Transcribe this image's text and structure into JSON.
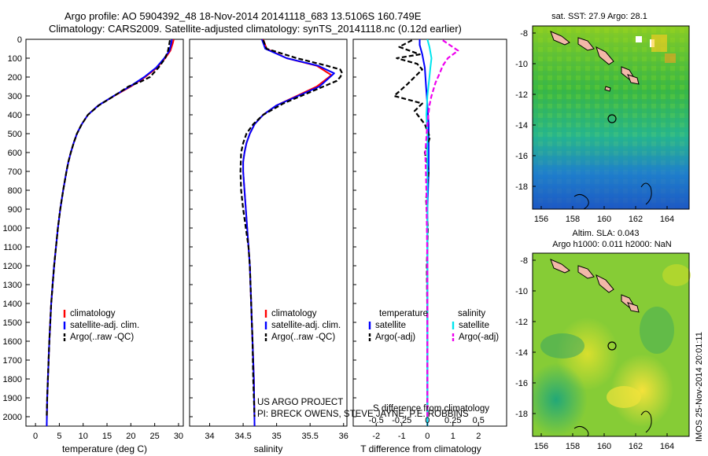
{
  "header": {
    "line1": "Argo profile: AO 5904392_48 18-Nov-2014 20141118_683 13.5106S 160.749E",
    "line2": "Climatology: CARS2009. Satellite-adjusted climatology: synTS_20141118.nc (0.12d earlier)"
  },
  "credits": {
    "project": "US ARGO PROJECT",
    "pis": "PI: BRECK OWENS, STEVE JAYNE, P.E. ROBBINS"
  },
  "side_stamp": "IMOS 25-Nov-2014 20:01:11",
  "maps": {
    "sst_title": "sat. SST: 27.9 Argo: 28.1",
    "sla_title1": "Altim. SLA: 0.043",
    "sla_title2": "Argo h1000: 0.011 h2000: NaN",
    "xticks": [
      "156",
      "158",
      "160",
      "162",
      "164"
    ],
    "yticks": [
      "-8",
      "-10",
      "-12",
      "-14",
      "-16",
      "-18"
    ],
    "argo_marker": {
      "lon": 160.749,
      "lat": -13.5106
    }
  },
  "colors": {
    "climatology": "#ff0000",
    "satellite_adj": "#0000ff",
    "argo": "#000000",
    "satellite_diff": "#00e5ee",
    "argo_sal_diff": "#ee00ee",
    "land": "#f2b8a8"
  },
  "chart_data": [
    {
      "type": "line",
      "xlabel": "temperature (deg C)",
      "ylabel": "",
      "xlim": [
        -2,
        31
      ],
      "ylim": [
        2050,
        0
      ],
      "xticks": [
        0,
        5,
        10,
        15,
        20,
        25,
        30
      ],
      "yticks": [
        0,
        100,
        200,
        300,
        400,
        500,
        600,
        700,
        800,
        900,
        1000,
        1100,
        1200,
        1300,
        1400,
        1500,
        1600,
        1700,
        1800,
        1900,
        2000
      ],
      "legend_position": "lower-center",
      "series": [
        {
          "name": "climatology",
          "color": "#ff0000",
          "style": "solid",
          "x": [
            29.0,
            28.8,
            28.3,
            27.2,
            25.5,
            23.0,
            20.0,
            16.5,
            13.2,
            11.0,
            9.7,
            8.7,
            8.0,
            7.4,
            6.9,
            6.5,
            5.8,
            5.2,
            4.7,
            4.3,
            3.9,
            3.6,
            3.3,
            3.1,
            2.9,
            2.75,
            2.6,
            2.45,
            2.35
          ],
          "y": [
            0,
            20,
            60,
            100,
            150,
            200,
            250,
            300,
            350,
            400,
            450,
            500,
            550,
            600,
            650,
            700,
            800,
            900,
            1000,
            1100,
            1200,
            1300,
            1400,
            1500,
            1600,
            1700,
            1800,
            1900,
            2050
          ]
        },
        {
          "name": "satellite-adj. clim.",
          "color": "#0000ff",
          "style": "solid",
          "x": [
            28.6,
            28.5,
            28.1,
            27.0,
            25.3,
            22.8,
            19.8,
            16.4,
            13.2,
            11.0,
            9.7,
            8.7,
            8.0,
            7.4,
            6.9,
            6.5,
            5.8,
            5.2,
            4.7,
            4.3,
            3.9,
            3.6,
            3.3,
            3.1,
            2.9,
            2.75,
            2.6,
            2.45,
            2.35
          ],
          "y": [
            0,
            20,
            60,
            100,
            150,
            200,
            250,
            300,
            350,
            400,
            450,
            500,
            550,
            600,
            650,
            700,
            800,
            900,
            1000,
            1100,
            1200,
            1300,
            1400,
            1500,
            1600,
            1700,
            1800,
            1900,
            2050
          ]
        },
        {
          "name": "Argo(..raw -QC)",
          "color": "#000000",
          "style": "dashed",
          "x": [
            28.2,
            28.1,
            27.8,
            27.2,
            25.8,
            24.0,
            22.0,
            19.5,
            16.5,
            13.3,
            11.0,
            9.7,
            8.7,
            8.0,
            7.4,
            6.9,
            6.5,
            5.8,
            5.2,
            4.7,
            4.3,
            3.9,
            3.6,
            3.3,
            3.1,
            2.9,
            2.75,
            2.6,
            2.45,
            2.35
          ],
          "y": [
            5,
            20,
            60,
            100,
            150,
            200,
            225,
            250,
            300,
            350,
            400,
            450,
            500,
            550,
            600,
            650,
            700,
            800,
            900,
            1000,
            1100,
            1200,
            1300,
            1400,
            1500,
            1600,
            1700,
            1800,
            1900,
            2000
          ]
        }
      ]
    },
    {
      "type": "line",
      "xlabel": "salinity",
      "ylabel": "",
      "xlim": [
        33.7,
        36.05
      ],
      "ylim": [
        2050,
        0
      ],
      "xticks": [
        34,
        34.5,
        35,
        35.5,
        36
      ],
      "legend_position": "lower-center",
      "series": [
        {
          "name": "climatology",
          "color": "#ff0000",
          "style": "solid",
          "x": [
            34.8,
            34.85,
            35.15,
            35.6,
            35.82,
            35.6,
            35.3,
            35.0,
            34.8,
            34.67,
            34.6,
            34.55,
            34.52,
            34.5,
            34.5,
            34.52,
            34.54,
            34.56,
            34.58,
            34.6,
            34.61,
            34.62,
            34.63,
            34.64,
            34.65,
            34.66,
            34.67
          ],
          "y": [
            0,
            50,
            100,
            140,
            190,
            250,
            300,
            350,
            400,
            450,
            500,
            550,
            600,
            650,
            700,
            800,
            900,
            1000,
            1100,
            1200,
            1300,
            1400,
            1500,
            1600,
            1700,
            1800,
            2050
          ]
        },
        {
          "name": "satellite-adj. clim.",
          "color": "#0000ff",
          "style": "solid",
          "x": [
            34.78,
            34.83,
            35.15,
            35.62,
            35.86,
            35.64,
            35.32,
            35.0,
            34.8,
            34.67,
            34.6,
            34.55,
            34.52,
            34.5,
            34.5,
            34.52,
            34.54,
            34.56,
            34.58,
            34.6,
            34.61,
            34.62,
            34.63,
            34.64,
            34.65,
            34.66,
            34.67
          ],
          "y": [
            0,
            50,
            100,
            140,
            180,
            250,
            300,
            350,
            400,
            450,
            500,
            550,
            600,
            650,
            700,
            800,
            900,
            1000,
            1100,
            1200,
            1300,
            1400,
            1500,
            1600,
            1700,
            1800,
            2050
          ]
        },
        {
          "name": "Argo(..raw -QC)",
          "color": "#000000",
          "style": "dashed",
          "x": [
            34.8,
            34.85,
            35.3,
            35.75,
            35.95,
            35.98,
            35.95,
            35.9,
            35.5,
            35.1,
            34.8,
            34.65,
            34.55,
            34.5,
            34.47,
            34.46,
            34.47,
            34.5,
            34.54,
            34.58,
            34.6,
            34.62,
            34.64,
            34.65,
            34.66,
            34.67
          ],
          "y": [
            5,
            50,
            100,
            140,
            160,
            180,
            200,
            220,
            280,
            340,
            400,
            450,
            500,
            550,
            600,
            700,
            800,
            900,
            1000,
            1100,
            1200,
            1400,
            1600,
            1800,
            1900,
            2000
          ]
        }
      ]
    },
    {
      "type": "line",
      "xlabel": "T difference from climatology",
      "xlabel2": "S difference from climatology",
      "ylabel": "",
      "xlim": [
        -2.9,
        3.1
      ],
      "xlim2": [
        -0.725,
        0.775
      ],
      "ylim": [
        2050,
        0
      ],
      "xticks": [
        -2,
        -1,
        0,
        1,
        2
      ],
      "xticks2": [
        -0.5,
        -0.25,
        0,
        0.25,
        0.5
      ],
      "legend_position": "lower-center",
      "legend_groups": [
        "temperature",
        "salinity"
      ],
      "series": [
        {
          "name": "satellite",
          "group": "temperature",
          "axis": "T",
          "color": "#0000ff",
          "style": "solid",
          "x": [
            -0.3,
            -0.3,
            -0.2,
            -0.1,
            -0.05,
            0.0,
            0.05,
            0.05,
            0.05,
            0.0,
            0.0,
            0.0,
            0.0
          ],
          "y": [
            0,
            30,
            80,
            150,
            250,
            350,
            450,
            550,
            700,
            900,
            1200,
            1600,
            2050
          ]
        },
        {
          "name": "Argo(-adj)",
          "group": "temperature",
          "axis": "T",
          "color": "#000000",
          "style": "dashed",
          "x": [
            -0.6,
            -1.1,
            -0.3,
            -1.2,
            -0.4,
            -0.2,
            -0.5,
            -0.8,
            -1.3,
            -0.2,
            -0.5,
            -0.1,
            0.1,
            -0.1,
            0.05,
            -0.05,
            0.02,
            -0.02,
            0.0,
            0.0,
            0.0
          ],
          "y": [
            5,
            40,
            80,
            100,
            130,
            160,
            200,
            240,
            300,
            340,
            380,
            450,
            520,
            600,
            700,
            850,
            1000,
            1200,
            1500,
            1800,
            2000
          ]
        },
        {
          "name": "satellite",
          "group": "salinity",
          "axis": "S",
          "color": "#00e5ee",
          "style": "solid",
          "x": [
            0.0,
            0.02,
            0.04,
            0.03,
            0.02,
            0.0,
            -0.01,
            0.0,
            0.0,
            0.0,
            0.0,
            0.0
          ],
          "y": [
            0,
            40,
            100,
            150,
            200,
            300,
            400,
            500,
            700,
            1000,
            1500,
            2050
          ]
        },
        {
          "name": "Argo(-adj)",
          "group": "salinity",
          "axis": "S",
          "color": "#ee00ee",
          "style": "dashed",
          "x": [
            0.15,
            0.3,
            0.2,
            0.15,
            0.12,
            0.08,
            0.04,
            0.02,
            0.0,
            -0.02,
            -0.01,
            0.0,
            0.0
          ],
          "y": [
            5,
            60,
            100,
            140,
            180,
            230,
            300,
            350,
            450,
            600,
            800,
            1200,
            2000
          ]
        }
      ]
    }
  ]
}
